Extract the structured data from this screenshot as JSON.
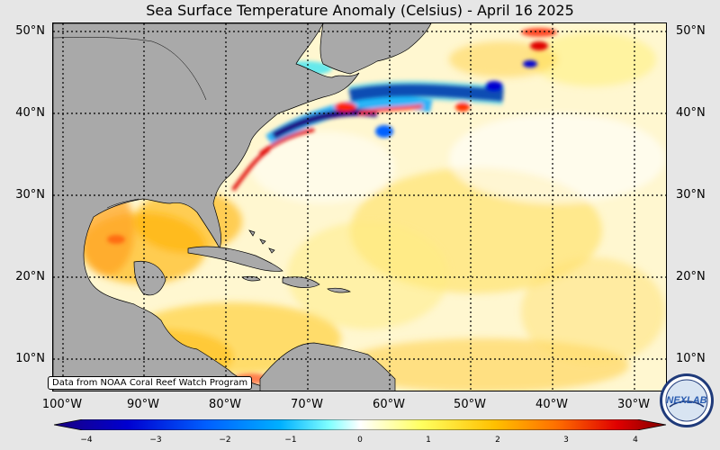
{
  "title": "Sea Surface Temperature Anomaly (Celsius) - April 16 2025",
  "credit": "Data from NOAA Coral Reef Watch Program",
  "logo_text": "NEXLAB",
  "lat_labels": [
    "50°N",
    "40°N",
    "30°N",
    "20°N",
    "10°N"
  ],
  "lon_labels": [
    "100°W",
    "90°W",
    "80°W",
    "70°W",
    "60°W",
    "50°W",
    "40°W",
    "30°W"
  ],
  "colorbar": {
    "min": -4,
    "max": 4,
    "ticks": [
      "−4",
      "−3",
      "−2",
      "−1",
      "0",
      "1",
      "2",
      "3",
      "4"
    ],
    "colors": [
      "#1a0080",
      "#0000d0",
      "#0060ff",
      "#00b0ff",
      "#80ffff",
      "#ffffff",
      "#ffff60",
      "#ffc000",
      "#ff7000",
      "#e00000",
      "#800000"
    ]
  },
  "map": {
    "ocean_base": "#fff7d0",
    "land_color": "#a9a9a9",
    "grid": "dotted"
  }
}
